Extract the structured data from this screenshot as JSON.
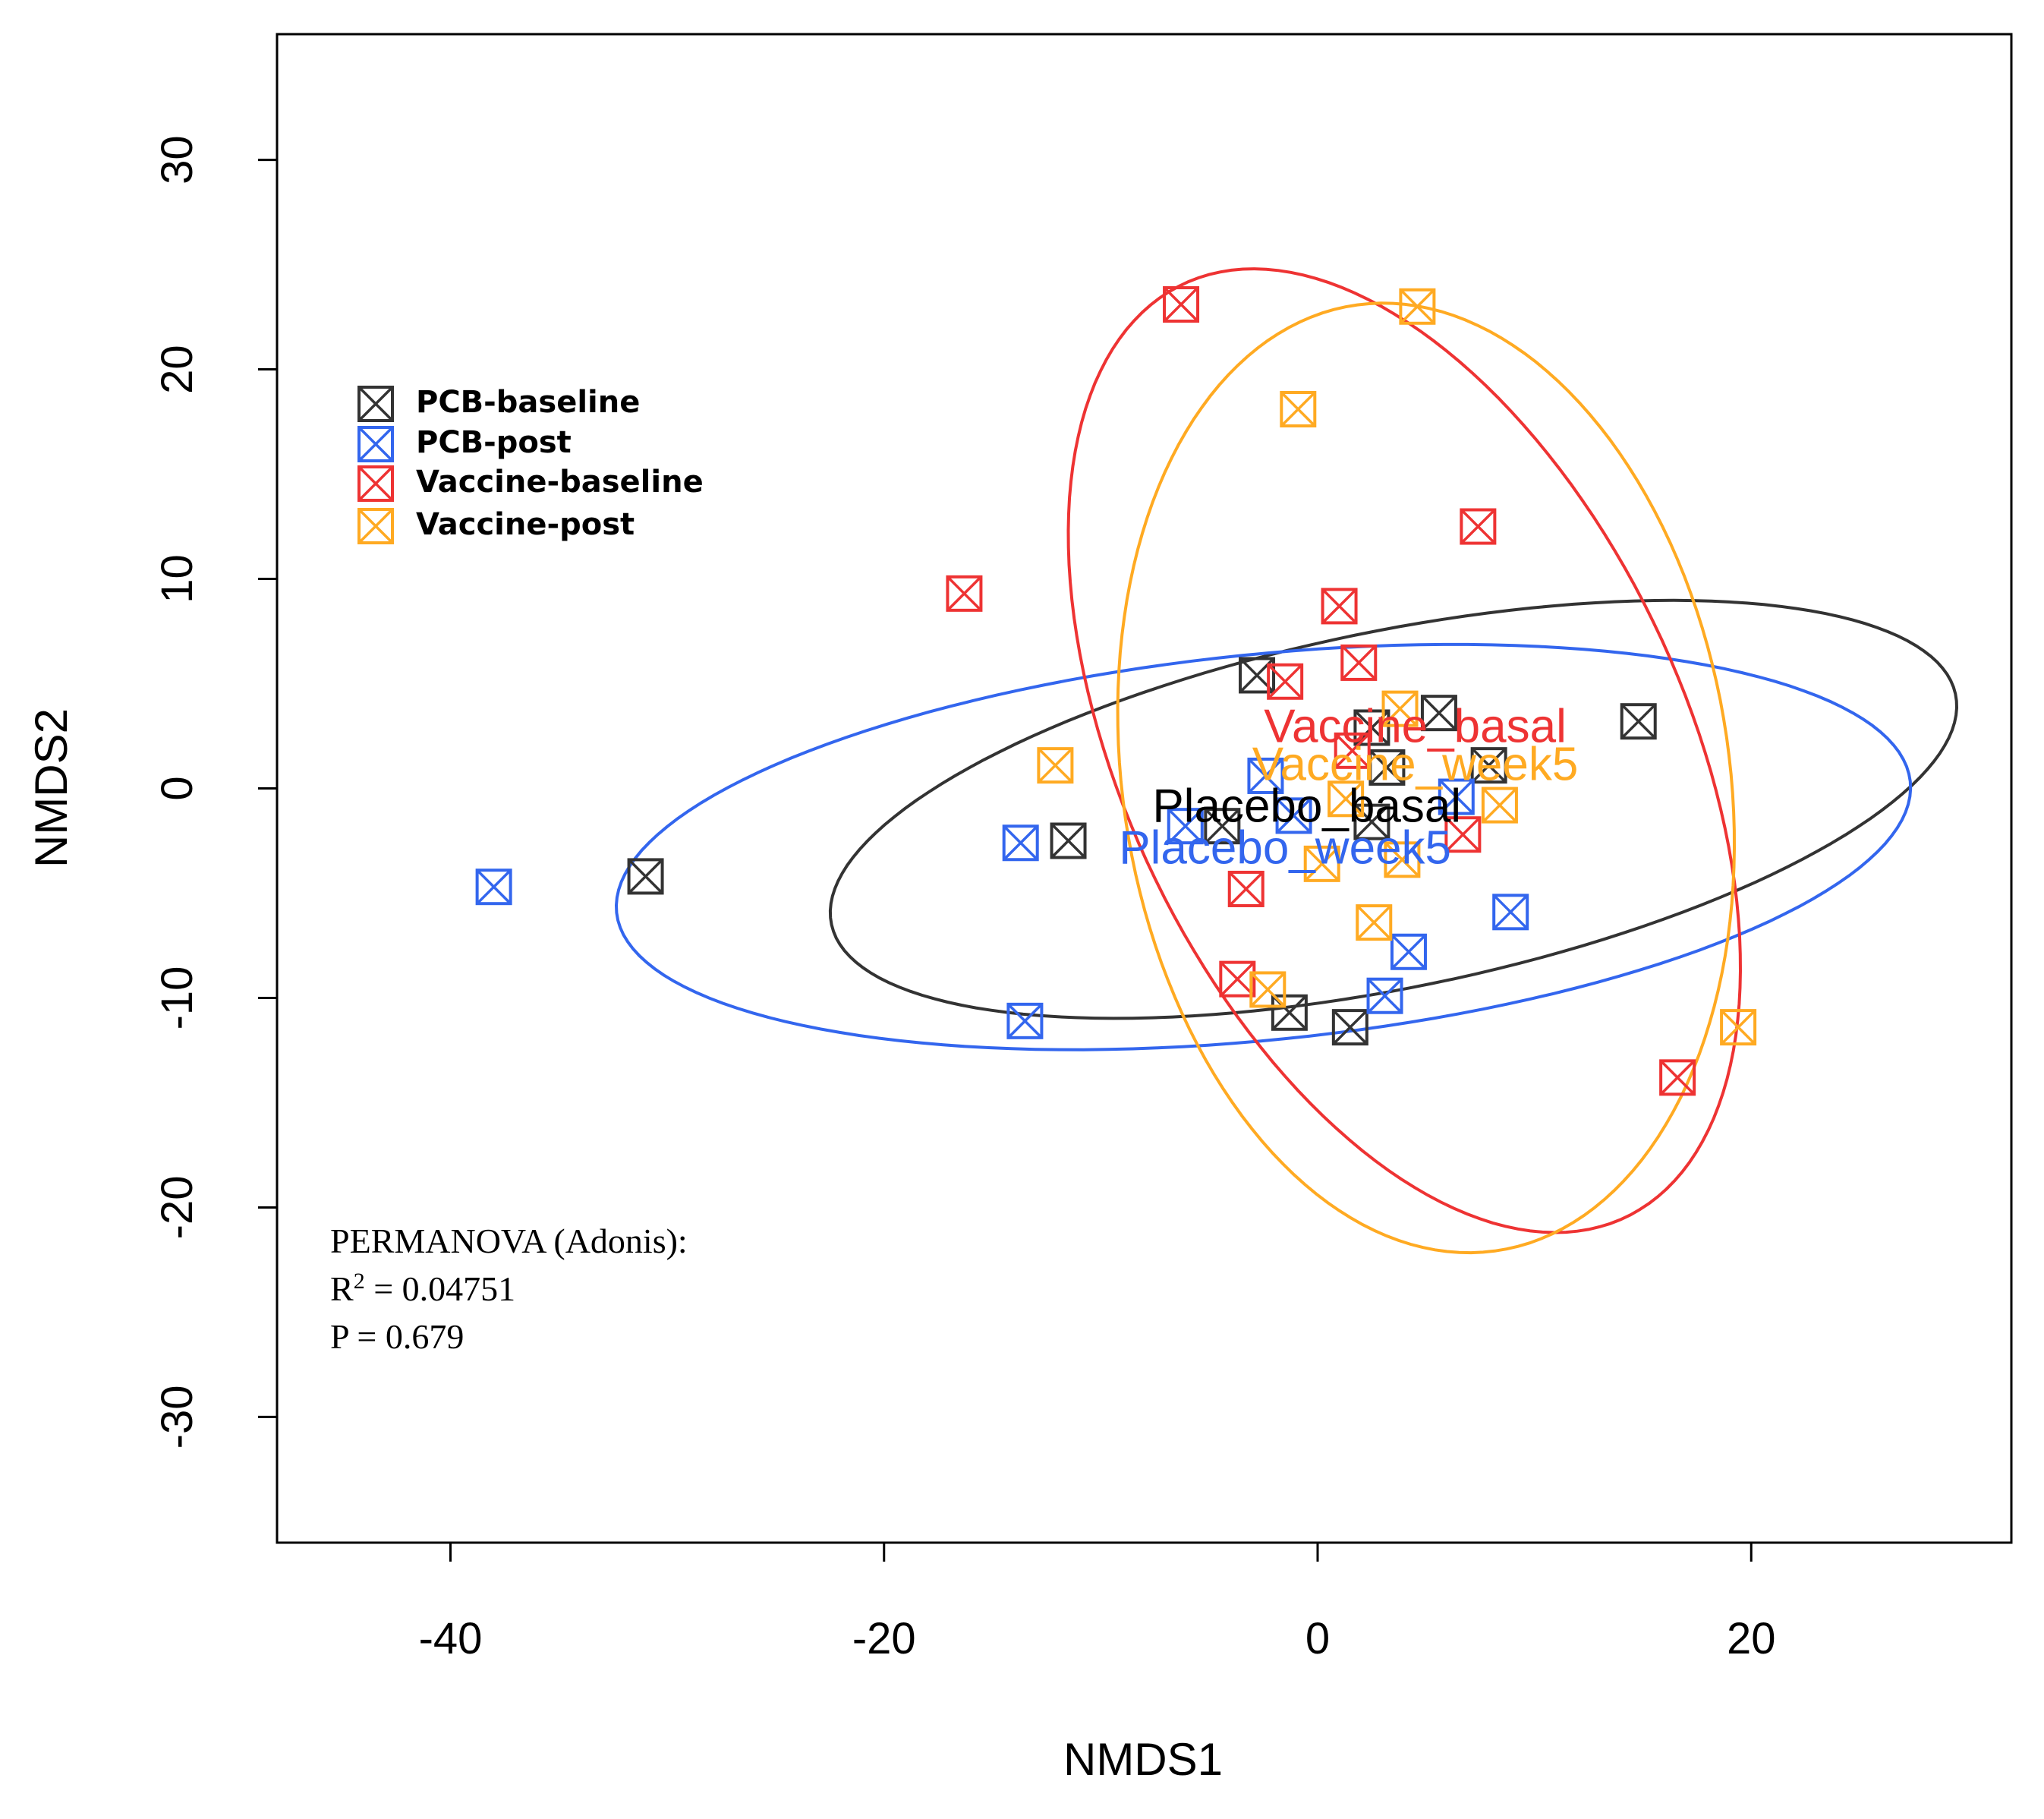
{
  "chart_data": {
    "type": "scatter",
    "title": "",
    "xlabel": "NMDS1",
    "ylabel": "NMDS2",
    "xlim": [
      -48,
      32
    ],
    "ylim": [
      -36,
      36
    ],
    "xticks": [
      -40,
      -20,
      0,
      20
    ],
    "yticks": [
      -30,
      -20,
      -10,
      0,
      10,
      20,
      30
    ],
    "xtick_labels": [
      "-40",
      "-20",
      "0",
      "20"
    ],
    "ytick_labels": [
      "-30",
      "-20",
      "-10",
      "0",
      "10",
      "20",
      "30"
    ],
    "legend_position": "top-left",
    "series": [
      {
        "name": "PCB-baseline",
        "color": "#333333",
        "points": [
          [
            -31,
            -4.2
          ],
          [
            -11.5,
            -2.5
          ],
          [
            -2.8,
            5.4
          ],
          [
            -4.4,
            -1.8
          ],
          [
            -1.3,
            -10.7
          ],
          [
            1.5,
            -11.4
          ],
          [
            2.5,
            2.9
          ],
          [
            2.5,
            -1.6
          ],
          [
            3.2,
            1.0
          ],
          [
            5.6,
            3.6
          ],
          [
            7.9,
            1.1
          ],
          [
            14.8,
            3.2
          ]
        ]
      },
      {
        "name": "PCB-post",
        "color": "#3366ee",
        "points": [
          [
            -38,
            -4.7
          ],
          [
            -13.7,
            -2.6
          ],
          [
            -13.5,
            -11.1
          ],
          [
            -6.1,
            -1.8
          ],
          [
            -2.4,
            0.6
          ],
          [
            -1.1,
            -1.3
          ],
          [
            3.1,
            -9.9
          ],
          [
            4.2,
            -7.8
          ],
          [
            6.4,
            -0.4
          ],
          [
            8.9,
            -5.9
          ]
        ]
      },
      {
        "name": "Vaccine-baseline",
        "color": "#ee3333",
        "points": [
          [
            -6.3,
            23.1
          ],
          [
            -16.3,
            9.3
          ],
          [
            -1.5,
            5.1
          ],
          [
            1.0,
            8.7
          ],
          [
            1.9,
            6.0
          ],
          [
            1.6,
            1.8
          ],
          [
            -3.3,
            -4.8
          ],
          [
            -3.7,
            -9.1
          ],
          [
            6.7,
            -2.2
          ],
          [
            7.4,
            12.5
          ],
          [
            16.6,
            -13.8
          ]
        ]
      },
      {
        "name": "Vaccine-post",
        "color": "#ffaa22",
        "points": [
          [
            4.6,
            23.0
          ],
          [
            -0.9,
            18.1
          ],
          [
            -12.1,
            1.1
          ],
          [
            -2.3,
            -9.6
          ],
          [
            0.2,
            -3.6
          ],
          [
            1.3,
            -0.5
          ],
          [
            2.6,
            -6.4
          ],
          [
            3.8,
            3.8
          ],
          [
            3.9,
            -3.4
          ],
          [
            8.4,
            -0.8
          ],
          [
            19.4,
            -11.4
          ]
        ]
      }
    ],
    "ellipses": [
      {
        "series": "PCB-baseline",
        "color": "#333333",
        "cx": 3.5,
        "cy": -1.0,
        "rx": 26.5,
        "ry": 8.5,
        "angle_deg": 12
      },
      {
        "series": "PCB-post",
        "color": "#3366ee",
        "cx": -2.5,
        "cy": -2.8,
        "rx": 30.0,
        "ry": 9.2,
        "angle_deg": 6
      },
      {
        "series": "Vaccine-baseline",
        "color": "#ee3333",
        "cx": 4.0,
        "cy": 1.8,
        "rx": 13.0,
        "ry": 24.5,
        "angle_deg": 24
      },
      {
        "series": "Vaccine-post",
        "color": "#ffaa22",
        "cx": 5.0,
        "cy": 0.5,
        "rx": 14.0,
        "ry": 22.8,
        "angle_deg": 8
      }
    ],
    "centroid_labels": [
      {
        "text": "Vaccine_basal",
        "x": 4.5,
        "y": 2.8,
        "color": "#ee3333"
      },
      {
        "text": "Vaccine_week5",
        "x": 4.5,
        "y": 1.0,
        "color": "#ffaa22"
      },
      {
        "text": "Placebo_basal",
        "x": -0.5,
        "y": -1.0,
        "color": "#000000"
      },
      {
        "text": "Placebo_week5",
        "x": -1.5,
        "y": -3.0,
        "color": "#3366ee"
      }
    ],
    "annotations": {
      "stats_title": "PERMANOVA (Adonis):",
      "stats_r2_prefix": "R",
      "stats_r2_sup": "2",
      "stats_r2_value": " = 0.04751",
      "stats_p": "P = 0.679"
    }
  }
}
